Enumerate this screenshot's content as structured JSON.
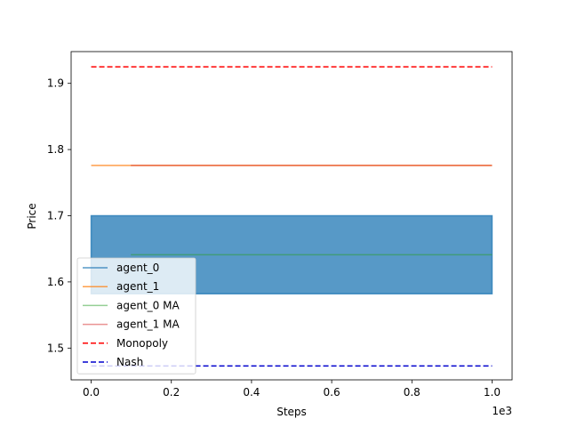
{
  "chart_data": {
    "type": "line",
    "title": "",
    "xlabel": "Steps",
    "ylabel": "Price",
    "x_offset_text": "1e3",
    "xlim": [
      -0.05,
      1.05
    ],
    "ylim": [
      1.452,
      1.948
    ],
    "x_ticks": [
      {
        "value": 0.0,
        "label": "0.0"
      },
      {
        "value": 0.2,
        "label": "0.2"
      },
      {
        "value": 0.4,
        "label": "0.4"
      },
      {
        "value": 0.6,
        "label": "0.6"
      },
      {
        "value": 0.8,
        "label": "0.8"
      },
      {
        "value": 1.0,
        "label": "1.0"
      }
    ],
    "y_ticks": [
      {
        "value": 1.5,
        "label": "1.5"
      },
      {
        "value": 1.6,
        "label": "1.6"
      },
      {
        "value": 1.7,
        "label": "1.7"
      },
      {
        "value": 1.8,
        "label": "1.8"
      },
      {
        "value": 1.9,
        "label": "1.9"
      }
    ],
    "grid": false,
    "legend_position": "lower-left",
    "series": [
      {
        "name": "agent_0",
        "color": "#1f77b4",
        "style": "solid",
        "alpha": 0.75,
        "oscillating": true,
        "range": [
          1.582,
          1.7
        ],
        "x_range": [
          0.0,
          1.0
        ]
      },
      {
        "name": "agent_1",
        "color": "#ff7f0e",
        "style": "solid",
        "alpha": 0.75,
        "x": [
          0.0,
          1.0
        ],
        "y": [
          1.776,
          1.776
        ]
      },
      {
        "name": "agent_0 MA",
        "color": "#2ca02c",
        "style": "solid",
        "alpha": 0.5,
        "x": [
          0.099,
          1.0
        ],
        "y": [
          1.641,
          1.641
        ]
      },
      {
        "name": "agent_1 MA",
        "color": "#d62728",
        "style": "solid",
        "alpha": 0.5,
        "x": [
          0.099,
          1.0
        ],
        "y": [
          1.776,
          1.776
        ]
      },
      {
        "name": "Monopoly",
        "color": "#ff0000",
        "style": "dashed",
        "alpha": 1,
        "x": [
          0.0,
          1.0
        ],
        "y": [
          1.925,
          1.925
        ]
      },
      {
        "name": "Nash",
        "color": "#0000cd",
        "style": "dashed",
        "alpha": 1,
        "x": [
          0.0,
          1.0
        ],
        "y": [
          1.473,
          1.473
        ]
      }
    ]
  }
}
